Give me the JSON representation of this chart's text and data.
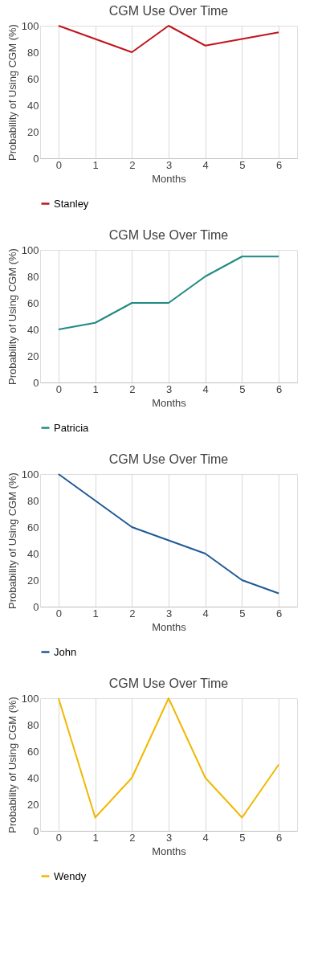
{
  "chart_data": [
    {
      "type": "line",
      "title": "CGM Use Over Time",
      "xlabel": "Months",
      "ylabel": "Probability of Using CGM (%)",
      "categories": [
        "0",
        "1",
        "2",
        "3",
        "4",
        "5",
        "6"
      ],
      "ylim": [
        0,
        100
      ],
      "yticks": [
        0,
        20,
        40,
        60,
        80,
        100
      ],
      "grid": "x",
      "legend": "bottom",
      "marker": "none",
      "series": [
        {
          "name": "Stanley",
          "color": "#c0141c",
          "values": [
            100,
            90,
            80,
            100,
            85,
            90,
            95
          ]
        }
      ]
    },
    {
      "type": "line",
      "title": "CGM Use Over Time",
      "xlabel": "Months",
      "ylabel": "Probability of Using CGM (%)",
      "categories": [
        "0",
        "1",
        "2",
        "3",
        "4",
        "5",
        "6"
      ],
      "ylim": [
        0,
        100
      ],
      "yticks": [
        0,
        20,
        40,
        60,
        80,
        100
      ],
      "grid": "x",
      "legend": "bottom",
      "marker": "none",
      "series": [
        {
          "name": "Patricia",
          "color": "#1f8a82",
          "values": [
            40,
            45,
            60,
            60,
            80,
            95,
            95
          ]
        }
      ]
    },
    {
      "type": "line",
      "title": "CGM Use Over Time",
      "xlabel": "Months",
      "ylabel": "Probability of Using CGM (%)",
      "categories": [
        "0",
        "1",
        "2",
        "3",
        "4",
        "5",
        "6"
      ],
      "ylim": [
        0,
        100
      ],
      "yticks": [
        0,
        20,
        40,
        60,
        80,
        100
      ],
      "grid": "x",
      "legend": "bottom",
      "marker": "none",
      "series": [
        {
          "name": "John",
          "color": "#1f5a96",
          "values": [
            100,
            80,
            60,
            50,
            40,
            20,
            10
          ]
        }
      ]
    },
    {
      "type": "line",
      "title": "CGM Use Over Time",
      "xlabel": "Months",
      "ylabel": "Probability of Using CGM (%)",
      "categories": [
        "0",
        "1",
        "2",
        "3",
        "4",
        "5",
        "6"
      ],
      "ylim": [
        0,
        100
      ],
      "yticks": [
        0,
        20,
        40,
        60,
        80,
        100
      ],
      "grid": "x",
      "legend": "bottom",
      "marker": "none",
      "series": [
        {
          "name": "Wendy",
          "color": "#f0b800",
          "values": [
            100,
            10,
            40,
            100,
            40,
            10,
            50
          ]
        }
      ]
    }
  ]
}
